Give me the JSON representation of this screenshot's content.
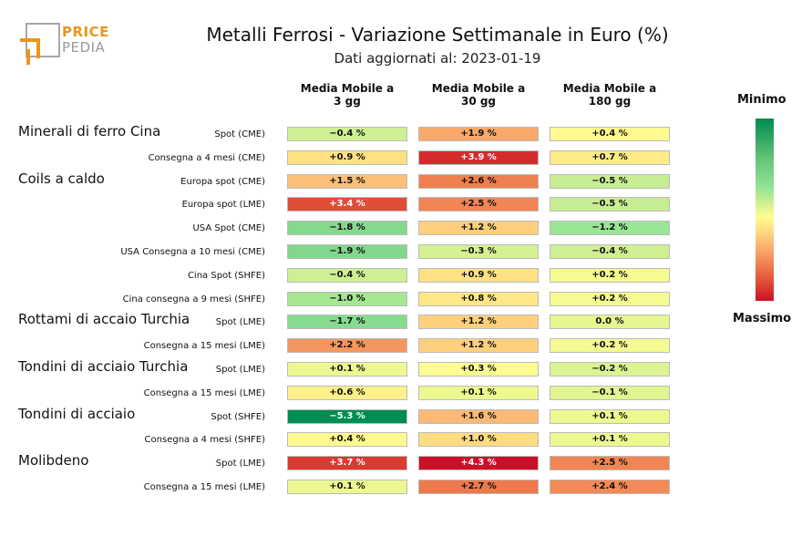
{
  "logo": {
    "line1": "PRICE",
    "line2": "PEDIA"
  },
  "header": {
    "title": "Metalli Ferrosi - Variazione Settimanale in Euro (%)",
    "subtitle": "Dati aggiornati al: 2023-01-19"
  },
  "columns": [
    "Media Mobile a\n3 gg",
    "Media Mobile a\n30 gg",
    "Media Mobile a\n180 gg"
  ],
  "legend": {
    "min_label": "Minimo",
    "max_label": "Massimo"
  },
  "groups": [
    {
      "name": "Minerali di ferro Cina",
      "row": 0
    },
    {
      "name": "Coils a caldo",
      "row": 2
    },
    {
      "name": "Rottami di accaio Turchia",
      "row": 8
    },
    {
      "name": "Tondini di acciaio Turchia",
      "row": 10
    },
    {
      "name": "Tondini di acciaio",
      "row": 12
    },
    {
      "name": "Molibdeno",
      "row": 14
    }
  ],
  "chart_data": {
    "type": "heatmap",
    "title": "Metalli Ferrosi - Variazione Settimanale in Euro (%)",
    "subtitle": "Dati aggiornati al: 2023-01-19",
    "columns": [
      "Media Mobile a 3 gg",
      "Media Mobile a 30 gg",
      "Media Mobile a 180 gg"
    ],
    "colorbar": {
      "low": "Minimo",
      "high": "Massimo",
      "low_color": "#1a9850",
      "mid_color": "#ffffbf",
      "high_color": "#d7191c"
    },
    "rows": [
      {
        "label": "Spot (CME)",
        "values": [
          -0.4,
          1.9,
          0.4
        ],
        "text": [
          "−0.4 %",
          "+1.9 %",
          "+0.4 %"
        ]
      },
      {
        "label": "Consegna a 4 mesi (CME)",
        "values": [
          0.9,
          3.9,
          0.7
        ],
        "text": [
          "+0.9 %",
          "+3.9 %",
          "+0.7 %"
        ]
      },
      {
        "label": "Europa spot (CME)",
        "values": [
          1.5,
          2.6,
          -0.5
        ],
        "text": [
          "+1.5 %",
          "+2.6 %",
          "−0.5 %"
        ]
      },
      {
        "label": "Europa spot (LME)",
        "values": [
          3.4,
          2.5,
          -0.5
        ],
        "text": [
          "+3.4 %",
          "+2.5 %",
          "−0.5 %"
        ]
      },
      {
        "label": "USA Spot (CME)",
        "values": [
          -1.8,
          1.2,
          -1.2
        ],
        "text": [
          "−1.8 %",
          "+1.2 %",
          "−1.2 %"
        ]
      },
      {
        "label": "USA Consegna a 10 mesi (CME)",
        "values": [
          -1.9,
          -0.3,
          -0.4
        ],
        "text": [
          "−1.9 %",
          "−0.3 %",
          "−0.4 %"
        ]
      },
      {
        "label": "Cina Spot (SHFE)",
        "values": [
          -0.4,
          0.9,
          0.2
        ],
        "text": [
          "−0.4 %",
          "+0.9 %",
          "+0.2 %"
        ]
      },
      {
        "label": "Cina consegna a 9 mesi (SHFE)",
        "values": [
          -1.0,
          0.8,
          0.2
        ],
        "text": [
          "−1.0 %",
          "+0.8 %",
          "+0.2 %"
        ]
      },
      {
        "label": "Spot (LME)",
        "values": [
          -1.7,
          1.2,
          0.0
        ],
        "text": [
          "−1.7 %",
          "+1.2 %",
          "0.0 %"
        ]
      },
      {
        "label": "Consegna a 15 mesi (LME)",
        "values": [
          2.2,
          1.2,
          0.2
        ],
        "text": [
          "+2.2 %",
          "+1.2 %",
          "+0.2 %"
        ]
      },
      {
        "label": "Spot (LME)",
        "values": [
          0.1,
          0.3,
          -0.2
        ],
        "text": [
          "+0.1 %",
          "+0.3 %",
          "−0.2 %"
        ]
      },
      {
        "label": "Consegna a 15 mesi (LME)",
        "values": [
          0.6,
          0.1,
          -0.1
        ],
        "text": [
          "+0.6 %",
          "+0.1 %",
          "−0.1 %"
        ]
      },
      {
        "label": "Spot (SHFE)",
        "values": [
          -5.3,
          1.6,
          0.1
        ],
        "text": [
          "−5.3 %",
          "+1.6 %",
          "+0.1 %"
        ]
      },
      {
        "label": "Consegna a 4 mesi (SHFE)",
        "values": [
          0.4,
          1.0,
          0.1
        ],
        "text": [
          "+0.4 %",
          "+1.0 %",
          "+0.1 %"
        ]
      },
      {
        "label": "Spot (LME)",
        "values": [
          3.7,
          4.3,
          2.5
        ],
        "text": [
          "+3.7 %",
          "+4.3 %",
          "+2.5 %"
        ]
      },
      {
        "label": "Consegna a 15 mesi (LME)",
        "values": [
          0.1,
          2.7,
          2.4
        ],
        "text": [
          "+0.1 %",
          "+2.7 %",
          "+2.4 %"
        ]
      }
    ]
  }
}
